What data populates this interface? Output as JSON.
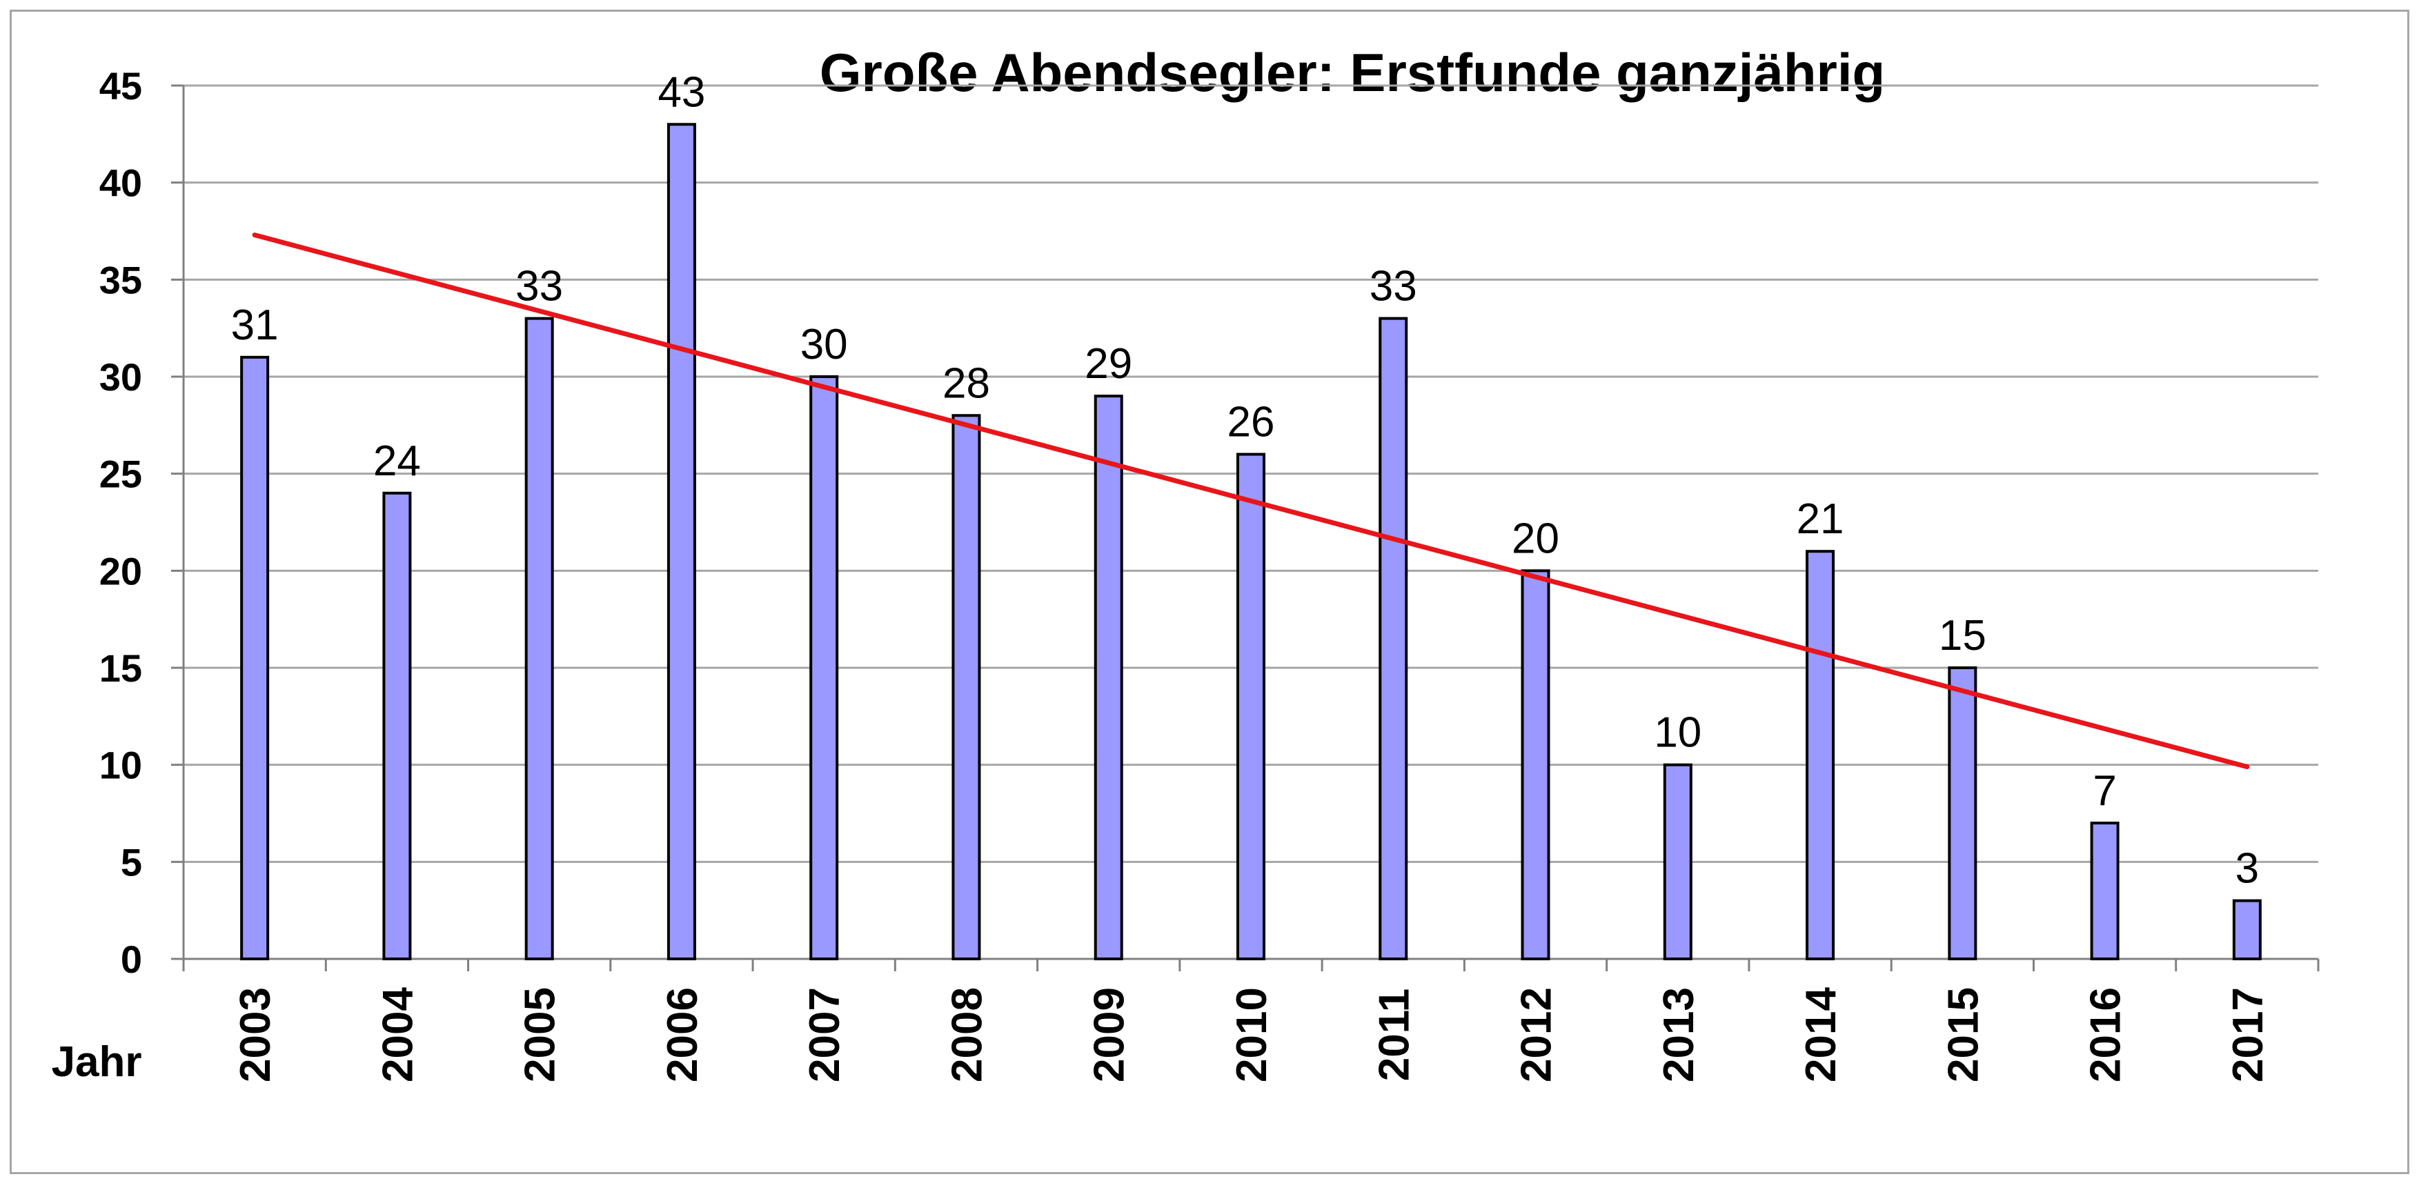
{
  "chart_data": {
    "type": "bar",
    "title": "Große Abendsegler: Erstfunde ganzjährig",
    "xlabel": "Jahr",
    "ylabel": "",
    "ylim": [
      0,
      45
    ],
    "yticks": [
      0,
      5,
      10,
      15,
      20,
      25,
      30,
      35,
      40,
      45
    ],
    "grid": true,
    "categories": [
      "2003",
      "2004",
      "2005",
      "2006",
      "2007",
      "2008",
      "2009",
      "2010",
      "2011",
      "2012",
      "2013",
      "2014",
      "2015",
      "2016",
      "2017"
    ],
    "values": [
      31,
      24,
      33,
      43,
      30,
      28,
      29,
      26,
      33,
      20,
      10,
      21,
      15,
      7,
      3
    ],
    "trendline": {
      "type": "linear",
      "start": 37.3,
      "end": 9.9
    },
    "colors": {
      "bar_fill": "#9999ff",
      "bar_stroke": "#000000",
      "trendline": "#e8151b",
      "grid": "#a6a6a6"
    }
  }
}
